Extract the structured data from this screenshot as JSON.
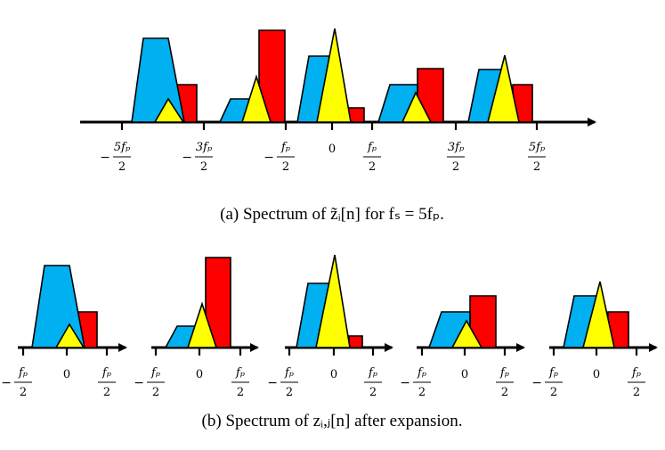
{
  "colors": {
    "blue": "#00B0F0",
    "red": "#FF0000",
    "yellow": "#FFFF00",
    "stroke": "#000000"
  },
  "panel_a": {
    "caption": "(a) Spectrum of z̃ᵢ[n] for fₛ = 5fₚ.",
    "ticks": [
      {
        "sign": "−",
        "num": "5fₚ",
        "den": "2"
      },
      {
        "sign": "−",
        "num": "3fₚ",
        "den": "2"
      },
      {
        "sign": "−",
        "num": "fₚ",
        "den": "2"
      },
      {
        "sign": "",
        "num": "0",
        "den": ""
      },
      {
        "sign": "",
        "num": "fₚ",
        "den": "2"
      },
      {
        "sign": "",
        "num": "3fₚ",
        "den": "2"
      },
      {
        "sign": "",
        "num": "5fₚ",
        "den": "2"
      }
    ]
  },
  "panel_b": {
    "caption": "(b) Spectrum of zᵢ,ⱼ[n] after expansion.",
    "ticks": [
      {
        "sign": "−",
        "num": "fₚ",
        "den": "2"
      },
      {
        "sign": "",
        "num": "0",
        "den": ""
      },
      {
        "sign": "",
        "num": "fₚ",
        "den": "2"
      }
    ]
  }
}
